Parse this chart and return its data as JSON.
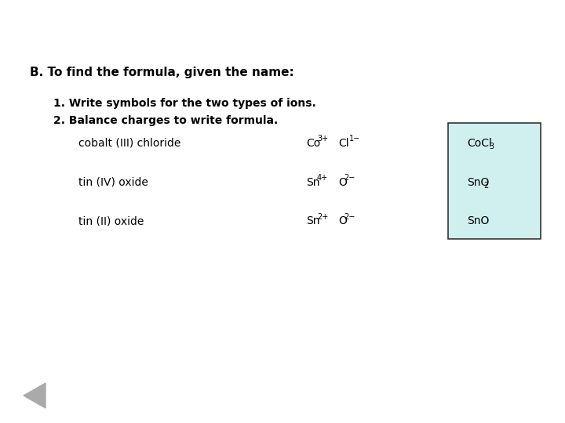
{
  "background_color": "#ffffff",
  "title_line": "B. To find the formula, given the name:",
  "step1": "1. Write symbols for the two types of ions.",
  "step2": "2. Balance charges to write formula.",
  "ion_rows": [
    {
      "name": "cobalt (III) chloride",
      "base1": "Co",
      "sup1": "3+",
      "base2": "Cl",
      "sup2": "1−",
      "formula_base": "CoCl",
      "formula_sub": "3"
    },
    {
      "name": "tin (IV) oxide",
      "base1": "Sn",
      "sup1": "4+",
      "base2": "O",
      "sup2": "2−",
      "formula_base": "SnO",
      "formula_sub": "2"
    },
    {
      "name": "tin (II) oxide",
      "base1": "Sn",
      "sup1": "2+",
      "base2": "O",
      "sup2": "2−",
      "formula_base": "SnO",
      "formula_sub": ""
    }
  ],
  "box_facecolor": "#cff0ee",
  "box_edgecolor": "#333333",
  "arrow_color": "#aaaaaa",
  "title_fontsize": 11,
  "body_fontsize": 10,
  "small_fontsize": 7
}
